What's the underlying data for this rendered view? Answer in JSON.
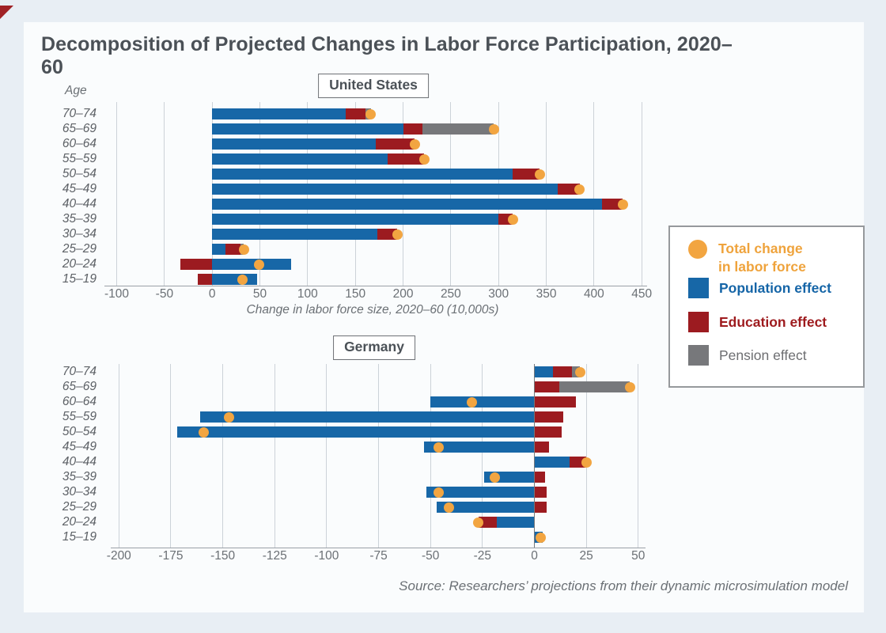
{
  "page": {
    "title": "Decomposition of Projected Changes in Labor Force Participation, 2020–60",
    "age_header": "Age",
    "source": "Source: Researchers’ projections from their dynamic microsimulation model"
  },
  "colors": {
    "population": "#1767a7",
    "education": "#9c1b20",
    "pension": "#77787b",
    "total": "#f2a541",
    "gridline": "#ccd2d8",
    "zero_line": "#74787c",
    "axis_line": "#9ba1a7",
    "text_dark": "#4b5157",
    "text_gray": "#6b7075"
  },
  "legend": {
    "items": [
      {
        "key": "total",
        "shape": "circle",
        "color": "#f2a541",
        "text_color": "#efa33c",
        "label": "Total change in labor force",
        "lines": [
          "Total change",
          "in labor force"
        ]
      },
      {
        "key": "population",
        "shape": "square",
        "color": "#1767a7",
        "text_color": "#1565a7",
        "label": "Population effect",
        "lines": [
          "Population effect"
        ]
      },
      {
        "key": "education",
        "shape": "square",
        "color": "#9c1b20",
        "text_color": "#9e1b1e",
        "label": "Education effect",
        "lines": [
          "Education effect"
        ]
      },
      {
        "key": "pension",
        "shape": "square",
        "color": "#77787b",
        "text_color": "#6d6e71",
        "label": "Pension effect",
        "lines": [
          "Pension effect"
        ]
      }
    ]
  },
  "chart_data": [
    {
      "type": "bar",
      "orientation": "horizontal",
      "panel": "United States",
      "xlabel": "Change in labor force size, 2020–60 (10,000s)",
      "ylabel": "Age",
      "xlim": [
        -100,
        450
      ],
      "xticks": [
        -100,
        -50,
        0,
        50,
        100,
        150,
        200,
        250,
        300,
        350,
        400,
        450
      ],
      "grid": true,
      "units": "10,000s of workers",
      "categories": [
        "70–74",
        "65–69",
        "60–64",
        "55–59",
        "50–54",
        "45–49",
        "40–44",
        "35–39",
        "30–34",
        "25–29",
        "20–24",
        "15–19"
      ],
      "series": [
        {
          "name": "Population effect",
          "key": "population",
          "values": [
            140,
            200,
            171,
            184,
            315,
            362,
            408,
            300,
            173,
            14,
            83,
            47
          ]
        },
        {
          "name": "Education effect",
          "key": "education",
          "values": [
            21,
            20,
            41,
            38,
            28,
            23,
            22,
            15,
            21,
            16,
            -33,
            -15
          ]
        },
        {
          "name": "Pension effect",
          "key": "pension",
          "values": [
            5,
            75,
            0,
            0,
            0,
            0,
            0,
            0,
            0,
            3,
            0,
            0
          ]
        },
        {
          "name": "Total change in labor force",
          "key": "total",
          "marker": "dot",
          "values": [
            166,
            295,
            212,
            222,
            343,
            385,
            430,
            315,
            194,
            33,
            49,
            32
          ]
        }
      ]
    },
    {
      "type": "bar",
      "orientation": "horizontal",
      "panel": "Germany",
      "xlabel": "",
      "ylabel": "Age",
      "xlim": [
        -200,
        50
      ],
      "xticks": [
        -200,
        -175,
        -150,
        -125,
        -100,
        -75,
        -50,
        -25,
        0,
        25,
        50
      ],
      "grid": true,
      "units": "10,000s of workers",
      "categories": [
        "70–74",
        "65–69",
        "60–64",
        "55–59",
        "50–54",
        "45–49",
        "40–44",
        "35–39",
        "30–34",
        "25–29",
        "20–24",
        "15–19"
      ],
      "series": [
        {
          "name": "Population effect",
          "key": "population",
          "values": [
            9,
            0,
            -50,
            -161,
            -172,
            -53,
            17,
            -24,
            -52,
            -47,
            -18,
            4
          ]
        },
        {
          "name": "Education effect",
          "key": "education",
          "values": [
            9,
            12,
            20,
            14,
            13,
            7,
            8,
            5,
            6,
            6,
            -9,
            0
          ]
        },
        {
          "name": "Pension effect",
          "key": "pension",
          "values": [
            4,
            34,
            0,
            0,
            0,
            0,
            0,
            0,
            0,
            0,
            0,
            0
          ]
        },
        {
          "name": "Total change in labor force",
          "key": "total",
          "marker": "dot",
          "values": [
            22,
            46,
            -30,
            -147,
            -159,
            -46,
            25,
            -19,
            -46,
            -41,
            -27,
            3
          ]
        }
      ]
    }
  ]
}
